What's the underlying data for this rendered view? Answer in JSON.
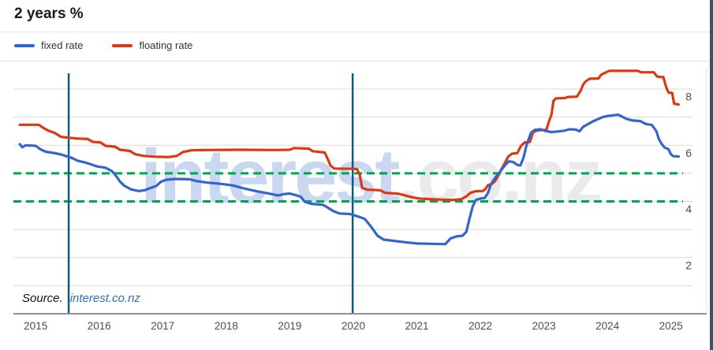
{
  "title": "2 years %",
  "legend": [
    {
      "label": "fixed rate",
      "color": "#3366cc"
    },
    {
      "label": "floating rate",
      "color": "#dc3912"
    }
  ],
  "source": {
    "prefix": "Source.",
    "link": "interest.co.nz"
  },
  "watermark": {
    "part1": "interest",
    "part2": ".co.nz",
    "color1": "#c9d7f1",
    "color2": "#eaeaea"
  },
  "chart_data": {
    "type": "line",
    "title": "2 years %",
    "ylabel": "%",
    "xlim": [
      2014.65,
      2025.56
    ],
    "ylim": [
      0,
      8.7
    ],
    "grid": true,
    "gridline_color": "#d9d9d9",
    "axis_line_color": "#919191",
    "tick_label_color": "#4d4d4d",
    "x_ticks": [
      2015,
      2016,
      2017,
      2018,
      2019,
      2020,
      2021,
      2022,
      2023,
      2024,
      2025
    ],
    "y_gridlines": [
      1,
      2,
      3,
      4,
      5,
      6,
      7,
      8
    ],
    "y_tick_labels": [
      {
        "value": 8,
        "label": "8"
      },
      {
        "value": 6,
        "label": "6"
      },
      {
        "value": 4,
        "label": "4"
      },
      {
        "value": 2,
        "label": "2"
      }
    ],
    "reference_lines": [
      {
        "value": 5.0,
        "style": "dashed",
        "color": "#00a551"
      },
      {
        "value": 4.0,
        "style": "dashed",
        "color": "#00a551"
      }
    ],
    "event_lines_x": [
      {
        "year": 2015.52,
        "color": "#135a7c"
      },
      {
        "year": 2019.99,
        "color": "#135a7c"
      }
    ],
    "legend_position": "top-left",
    "series": [
      {
        "name": "fixed rate",
        "color": "#3366cc",
        "points": [
          [
            2014.75,
            6.04
          ],
          [
            2014.79,
            5.93
          ],
          [
            2014.84,
            6.0
          ],
          [
            2015.0,
            5.98
          ],
          [
            2015.08,
            5.85
          ],
          [
            2015.16,
            5.77
          ],
          [
            2015.28,
            5.73
          ],
          [
            2015.4,
            5.67
          ],
          [
            2015.5,
            5.6
          ],
          [
            2015.58,
            5.54
          ],
          [
            2015.66,
            5.45
          ],
          [
            2015.76,
            5.4
          ],
          [
            2015.86,
            5.33
          ],
          [
            2015.96,
            5.25
          ],
          [
            2016.1,
            5.2
          ],
          [
            2016.2,
            5.08
          ],
          [
            2016.27,
            4.9
          ],
          [
            2016.33,
            4.7
          ],
          [
            2016.4,
            4.55
          ],
          [
            2016.5,
            4.43
          ],
          [
            2016.62,
            4.37
          ],
          [
            2016.72,
            4.4
          ],
          [
            2016.8,
            4.47
          ],
          [
            2016.9,
            4.55
          ],
          [
            2016.97,
            4.7
          ],
          [
            2017.05,
            4.77
          ],
          [
            2017.2,
            4.8
          ],
          [
            2017.42,
            4.79
          ],
          [
            2017.55,
            4.72
          ],
          [
            2017.7,
            4.67
          ],
          [
            2017.9,
            4.63
          ],
          [
            2018.1,
            4.57
          ],
          [
            2018.28,
            4.46
          ],
          [
            2018.46,
            4.37
          ],
          [
            2018.65,
            4.29
          ],
          [
            2018.82,
            4.21
          ],
          [
            2018.9,
            4.26
          ],
          [
            2019.0,
            4.28
          ],
          [
            2019.1,
            4.22
          ],
          [
            2019.17,
            4.17
          ],
          [
            2019.24,
            3.98
          ],
          [
            2019.35,
            3.91
          ],
          [
            2019.52,
            3.88
          ],
          [
            2019.6,
            3.78
          ],
          [
            2019.68,
            3.66
          ],
          [
            2019.78,
            3.57
          ],
          [
            2019.95,
            3.55
          ],
          [
            2020.08,
            3.46
          ],
          [
            2020.18,
            3.38
          ],
          [
            2020.28,
            3.1
          ],
          [
            2020.38,
            2.78
          ],
          [
            2020.48,
            2.64
          ],
          [
            2020.62,
            2.6
          ],
          [
            2020.8,
            2.55
          ],
          [
            2021.0,
            2.5
          ],
          [
            2021.25,
            2.49
          ],
          [
            2021.45,
            2.48
          ],
          [
            2021.53,
            2.68
          ],
          [
            2021.62,
            2.75
          ],
          [
            2021.72,
            2.78
          ],
          [
            2021.78,
            2.92
          ],
          [
            2021.83,
            3.4
          ],
          [
            2021.88,
            3.83
          ],
          [
            2021.93,
            4.05
          ],
          [
            2022.0,
            4.1
          ],
          [
            2022.07,
            4.13
          ],
          [
            2022.12,
            4.3
          ],
          [
            2022.16,
            4.57
          ],
          [
            2022.21,
            4.77
          ],
          [
            2022.26,
            4.92
          ],
          [
            2022.3,
            5.02
          ],
          [
            2022.35,
            5.18
          ],
          [
            2022.4,
            5.32
          ],
          [
            2022.45,
            5.43
          ],
          [
            2022.52,
            5.4
          ],
          [
            2022.58,
            5.3
          ],
          [
            2022.63,
            5.28
          ],
          [
            2022.68,
            5.56
          ],
          [
            2022.72,
            5.94
          ],
          [
            2022.76,
            6.22
          ],
          [
            2022.8,
            6.46
          ],
          [
            2022.86,
            6.55
          ],
          [
            2022.95,
            6.57
          ],
          [
            2023.02,
            6.51
          ],
          [
            2023.12,
            6.47
          ],
          [
            2023.22,
            6.49
          ],
          [
            2023.32,
            6.52
          ],
          [
            2023.4,
            6.57
          ],
          [
            2023.5,
            6.56
          ],
          [
            2023.56,
            6.5
          ],
          [
            2023.62,
            6.66
          ],
          [
            2023.7,
            6.76
          ],
          [
            2023.78,
            6.86
          ],
          [
            2023.86,
            6.94
          ],
          [
            2023.92,
            7.0
          ],
          [
            2024.0,
            7.04
          ],
          [
            2024.1,
            7.07
          ],
          [
            2024.17,
            7.09
          ],
          [
            2024.24,
            7.01
          ],
          [
            2024.3,
            6.94
          ],
          [
            2024.4,
            6.88
          ],
          [
            2024.52,
            6.86
          ],
          [
            2024.6,
            6.76
          ],
          [
            2024.7,
            6.72
          ],
          [
            2024.77,
            6.5
          ],
          [
            2024.81,
            6.22
          ],
          [
            2024.85,
            6.06
          ],
          [
            2024.9,
            5.92
          ],
          [
            2024.96,
            5.86
          ],
          [
            2025.0,
            5.68
          ],
          [
            2025.04,
            5.61
          ],
          [
            2025.12,
            5.6
          ]
        ]
      },
      {
        "name": "floating rate",
        "color": "#dc3912",
        "points": [
          [
            2014.75,
            6.73
          ],
          [
            2015.05,
            6.73
          ],
          [
            2015.12,
            6.62
          ],
          [
            2015.2,
            6.52
          ],
          [
            2015.3,
            6.44
          ],
          [
            2015.4,
            6.3
          ],
          [
            2015.52,
            6.27
          ],
          [
            2015.65,
            6.24
          ],
          [
            2015.82,
            6.22
          ],
          [
            2015.9,
            6.12
          ],
          [
            2016.02,
            6.1
          ],
          [
            2016.1,
            5.98
          ],
          [
            2016.25,
            5.95
          ],
          [
            2016.33,
            5.84
          ],
          [
            2016.48,
            5.8
          ],
          [
            2016.57,
            5.68
          ],
          [
            2016.7,
            5.62
          ],
          [
            2016.9,
            5.59
          ],
          [
            2017.1,
            5.58
          ],
          [
            2017.22,
            5.62
          ],
          [
            2017.32,
            5.76
          ],
          [
            2017.45,
            5.82
          ],
          [
            2017.7,
            5.83
          ],
          [
            2018.2,
            5.84
          ],
          [
            2018.8,
            5.83
          ],
          [
            2019.0,
            5.84
          ],
          [
            2019.07,
            5.9
          ],
          [
            2019.3,
            5.88
          ],
          [
            2019.36,
            5.79
          ],
          [
            2019.55,
            5.74
          ],
          [
            2019.6,
            5.5
          ],
          [
            2019.64,
            5.28
          ],
          [
            2019.7,
            5.17
          ],
          [
            2020.0,
            5.16
          ],
          [
            2020.06,
            5.15
          ],
          [
            2020.1,
            4.95
          ],
          [
            2020.14,
            4.48
          ],
          [
            2020.22,
            4.42
          ],
          [
            2020.42,
            4.4
          ],
          [
            2020.5,
            4.31
          ],
          [
            2020.72,
            4.27
          ],
          [
            2020.92,
            4.15
          ],
          [
            2021.05,
            4.1
          ],
          [
            2021.3,
            4.07
          ],
          [
            2021.55,
            4.05
          ],
          [
            2021.7,
            4.08
          ],
          [
            2021.78,
            4.18
          ],
          [
            2021.84,
            4.3
          ],
          [
            2021.92,
            4.36
          ],
          [
            2022.04,
            4.37
          ],
          [
            2022.08,
            4.44
          ],
          [
            2022.12,
            4.58
          ],
          [
            2022.18,
            4.62
          ],
          [
            2022.23,
            4.72
          ],
          [
            2022.27,
            4.87
          ],
          [
            2022.32,
            5.1
          ],
          [
            2022.38,
            5.35
          ],
          [
            2022.44,
            5.6
          ],
          [
            2022.5,
            5.7
          ],
          [
            2022.58,
            5.72
          ],
          [
            2022.64,
            5.98
          ],
          [
            2022.7,
            6.1
          ],
          [
            2022.78,
            6.12
          ],
          [
            2022.83,
            6.46
          ],
          [
            2022.9,
            6.53
          ],
          [
            2023.04,
            6.55
          ],
          [
            2023.08,
            6.85
          ],
          [
            2023.12,
            7.1
          ],
          [
            2023.15,
            7.58
          ],
          [
            2023.19,
            7.67
          ],
          [
            2023.33,
            7.68
          ],
          [
            2023.38,
            7.72
          ],
          [
            2023.52,
            7.73
          ],
          [
            2023.58,
            7.95
          ],
          [
            2023.62,
            8.17
          ],
          [
            2023.66,
            8.28
          ],
          [
            2023.72,
            8.37
          ],
          [
            2023.86,
            8.38
          ],
          [
            2023.9,
            8.51
          ],
          [
            2023.98,
            8.6
          ],
          [
            2024.03,
            8.65
          ],
          [
            2024.48,
            8.65
          ],
          [
            2024.53,
            8.6
          ],
          [
            2024.73,
            8.6
          ],
          [
            2024.78,
            8.45
          ],
          [
            2024.83,
            8.43
          ],
          [
            2024.88,
            8.43
          ],
          [
            2024.92,
            8.1
          ],
          [
            2024.96,
            7.88
          ],
          [
            2025.02,
            7.86
          ],
          [
            2025.05,
            7.48
          ],
          [
            2025.12,
            7.45
          ]
        ]
      }
    ]
  }
}
